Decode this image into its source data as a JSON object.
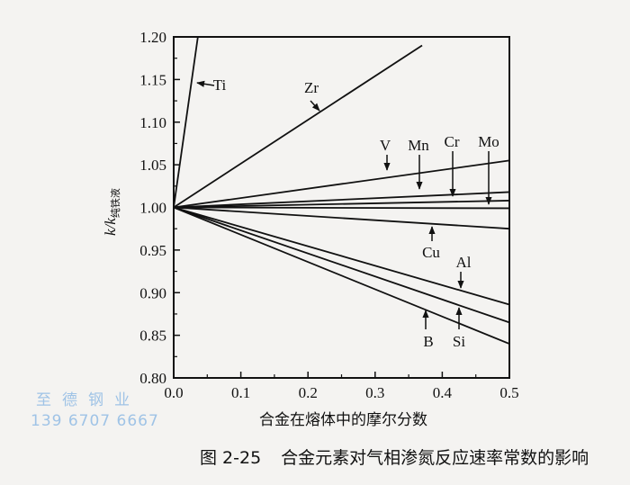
{
  "chart_data": {
    "type": "line",
    "title": "",
    "xlabel": "合金在熔体中的摩尔分数",
    "ylabel": "k/k纯铁液",
    "xlim": [
      0.0,
      0.5
    ],
    "ylim": [
      0.8,
      1.2
    ],
    "xticks": [
      "0.0",
      "0.1",
      "0.2",
      "0.3",
      "0.4",
      "0.5"
    ],
    "yticks": [
      "0.80",
      "0.85",
      "0.90",
      "0.95",
      "1.00",
      "1.05",
      "1.10",
      "1.15",
      "1.20"
    ],
    "grid": false,
    "series": [
      {
        "name": "Ti",
        "x": [
          0,
          0.036
        ],
        "y": [
          1.0,
          1.2
        ]
      },
      {
        "name": "Zr",
        "x": [
          0,
          0.37
        ],
        "y": [
          1.0,
          1.19
        ]
      },
      {
        "name": "V",
        "x": [
          0,
          0.5
        ],
        "y": [
          1.0,
          1.055
        ]
      },
      {
        "name": "Mn",
        "x": [
          0,
          0.5
        ],
        "y": [
          1.0,
          1.018
        ]
      },
      {
        "name": "Cr",
        "x": [
          0,
          0.5
        ],
        "y": [
          1.0,
          1.008
        ]
      },
      {
        "name": "Mo",
        "x": [
          0,
          0.5
        ],
        "y": [
          1.0,
          0.999
        ]
      },
      {
        "name": "Cu",
        "x": [
          0,
          0.5
        ],
        "y": [
          1.0,
          0.975
        ]
      },
      {
        "name": "Al",
        "x": [
          0,
          0.5
        ],
        "y": [
          1.0,
          0.886
        ]
      },
      {
        "name": "Si",
        "x": [
          0,
          0.5
        ],
        "y": [
          1.0,
          0.865
        ]
      },
      {
        "name": "B",
        "x": [
          0,
          0.5
        ],
        "y": [
          1.0,
          0.84
        ]
      }
    ]
  },
  "ylabel_main": "k/k",
  "ylabel_sub": "纯铁液",
  "caption": {
    "number": "图 2-25",
    "text": "合金元素对气相渗氮反应速率常数的影响"
  },
  "watermark": {
    "company": "至德钢业",
    "phone": "139 6707 6667"
  }
}
